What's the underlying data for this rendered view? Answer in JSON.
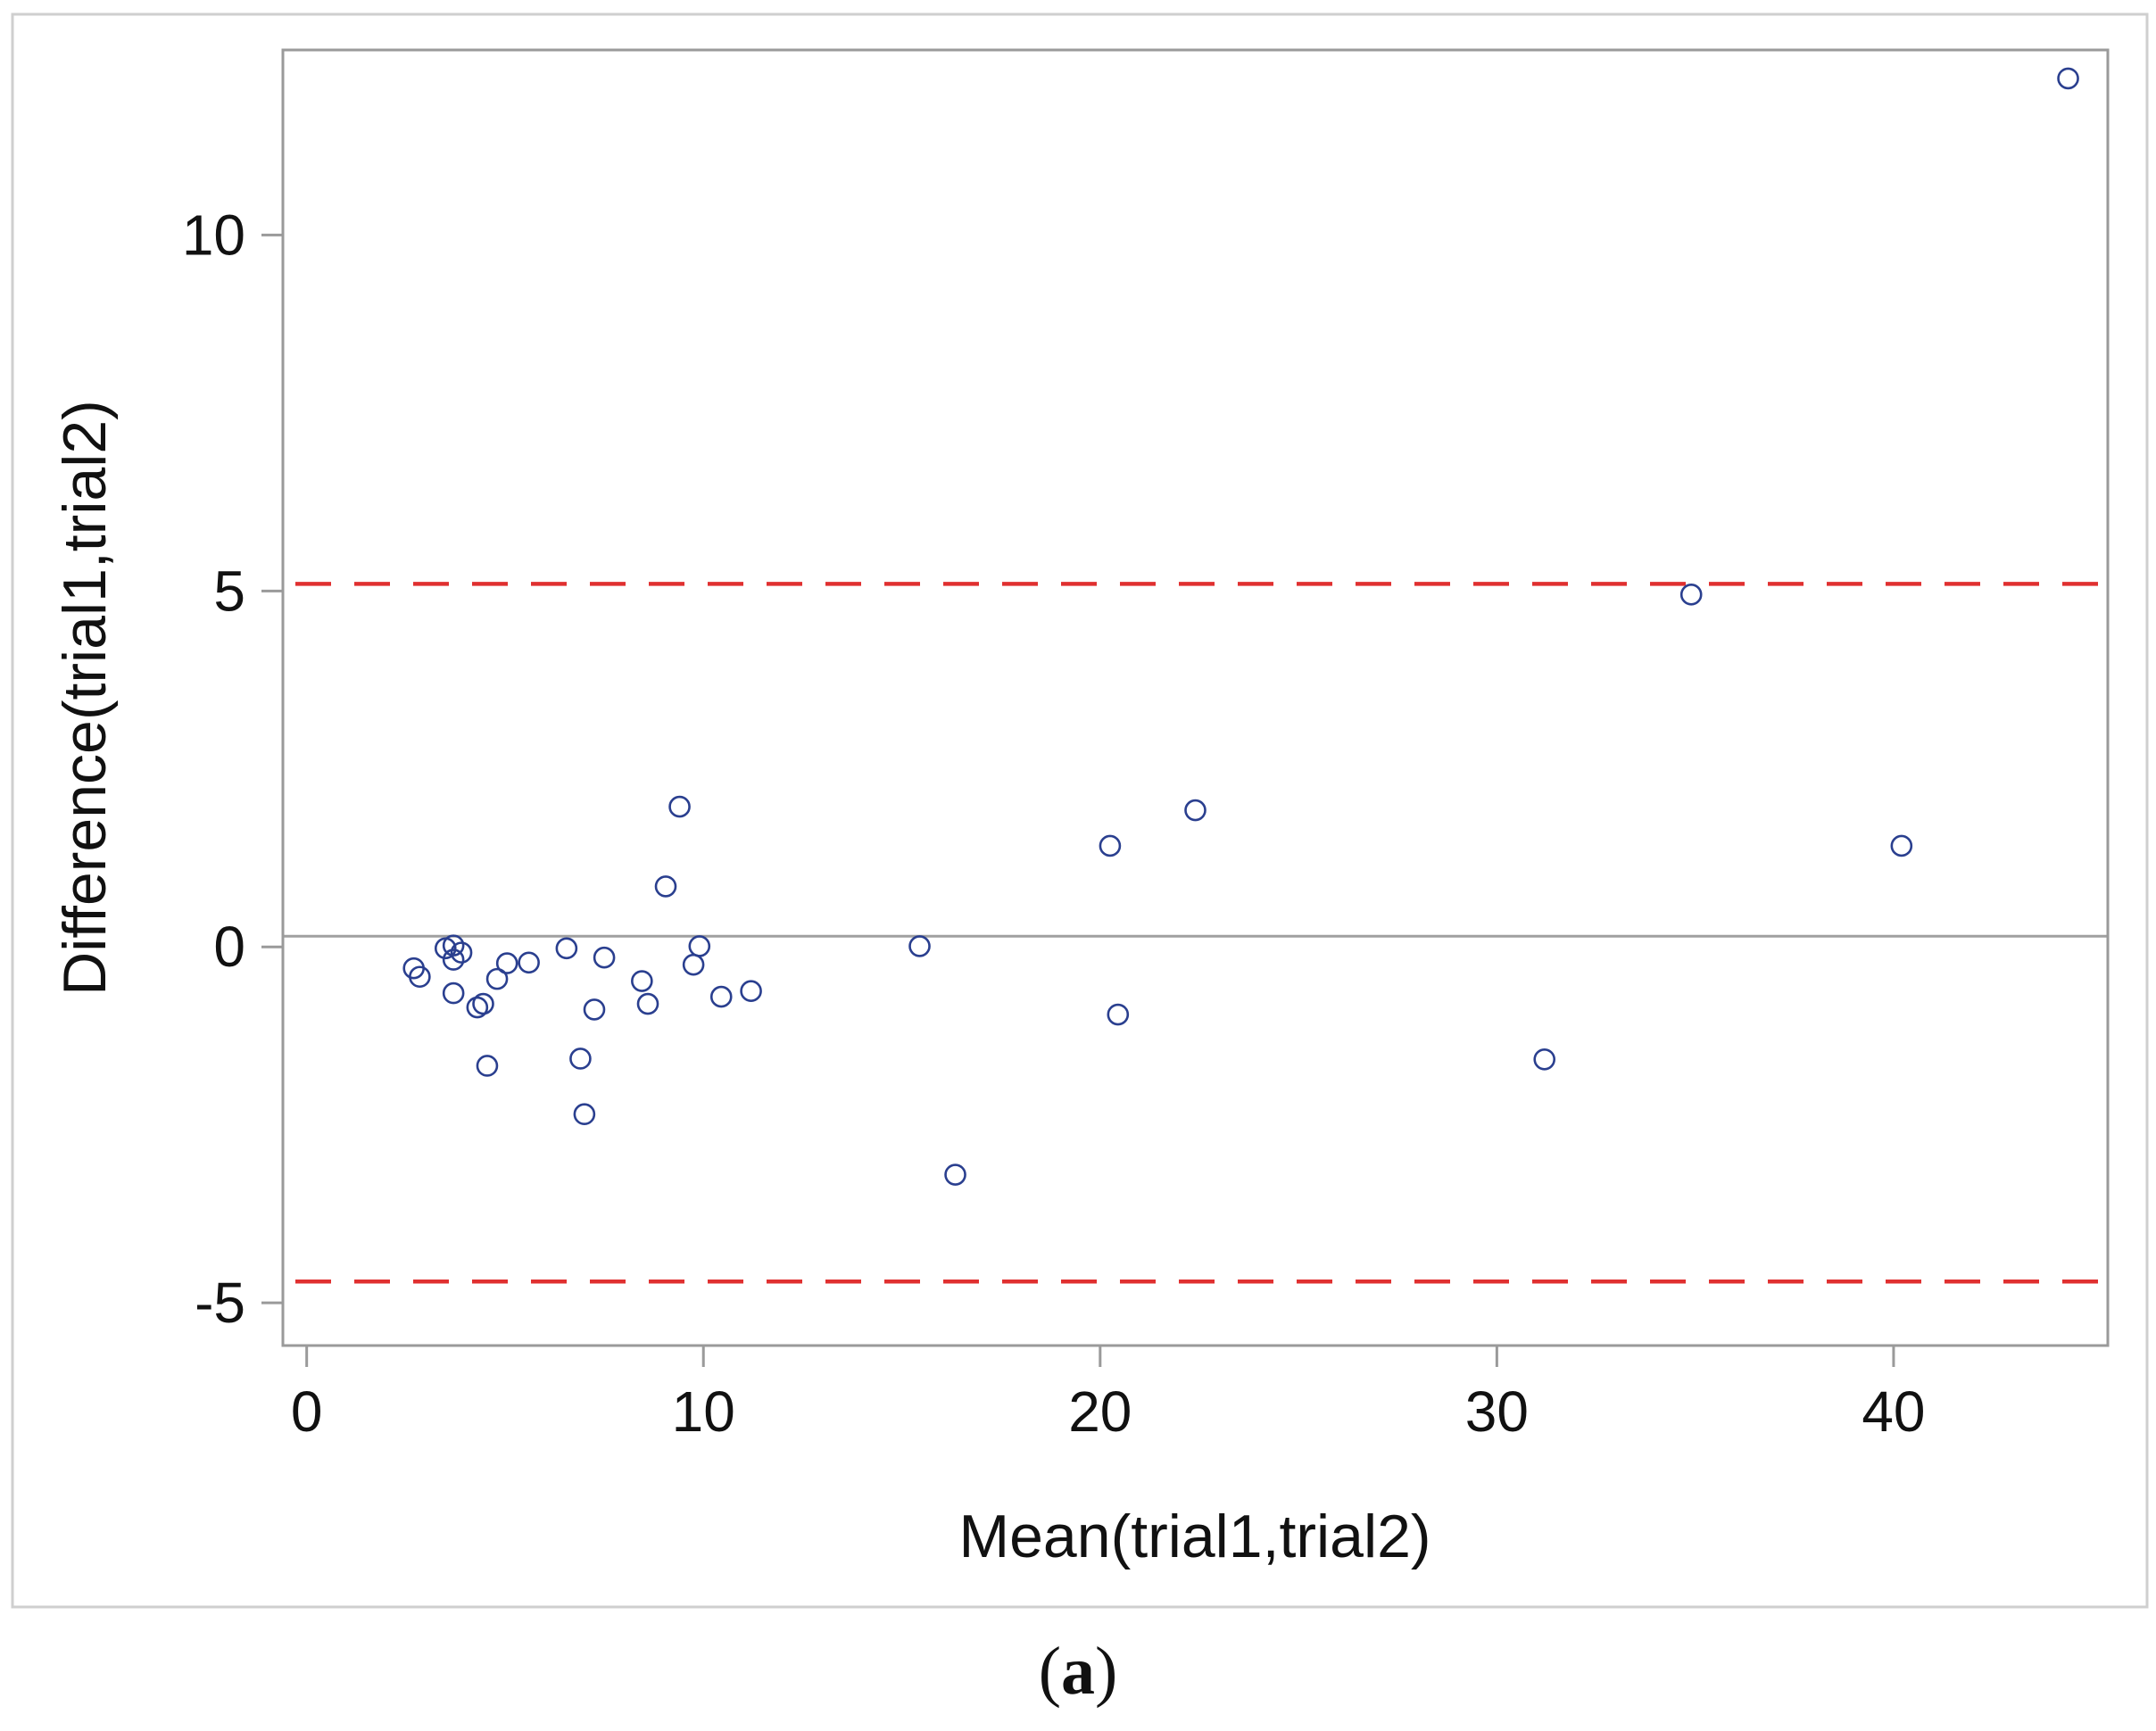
{
  "chart_data": {
    "type": "scatter",
    "title": "",
    "xlabel": "Mean(trial1,trial2)",
    "ylabel": "Difference(trial1,trial2)",
    "xlim": [
      -0.6,
      45.4
    ],
    "ylim": [
      -5.6,
      12.6
    ],
    "x_ticks": [
      0,
      10,
      20,
      30,
      40
    ],
    "x_tick_labels": [
      "0",
      "10",
      "20",
      "30",
      "40"
    ],
    "y_ticks": [
      -5,
      0,
      5,
      10
    ],
    "y_tick_labels": [
      "-5",
      "0",
      "5",
      "10"
    ],
    "grid": false,
    "reference_lines": [
      {
        "name": "mean-difference",
        "y": 0.15,
        "style": "solid",
        "color": "#a0a0a0"
      },
      {
        "name": "upper-limit-of-agreement",
        "y": 5.1,
        "style": "dashed",
        "color": "#e03030"
      },
      {
        "name": "lower-limit-of-agreement",
        "y": -4.7,
        "style": "dashed",
        "color": "#e03030"
      }
    ],
    "marker_color": "#2a3f8f",
    "series": [
      {
        "name": "observations",
        "points": [
          {
            "x": 2.7,
            "y": -0.3
          },
          {
            "x": 2.85,
            "y": -0.42
          },
          {
            "x": 3.5,
            "y": -0.02
          },
          {
            "x": 3.7,
            "y": 0.02
          },
          {
            "x": 3.7,
            "y": -0.18
          },
          {
            "x": 3.7,
            "y": -0.65
          },
          {
            "x": 3.9,
            "y": -0.08
          },
          {
            "x": 4.3,
            "y": -0.85
          },
          {
            "x": 4.45,
            "y": -0.8
          },
          {
            "x": 4.55,
            "y": -1.67
          },
          {
            "x": 4.8,
            "y": -0.45
          },
          {
            "x": 5.05,
            "y": -0.23
          },
          {
            "x": 5.6,
            "y": -0.22
          },
          {
            "x": 6.55,
            "y": -0.02
          },
          {
            "x": 6.9,
            "y": -1.57
          },
          {
            "x": 7.0,
            "y": -2.35
          },
          {
            "x": 7.25,
            "y": -0.88
          },
          {
            "x": 7.5,
            "y": -0.15
          },
          {
            "x": 8.45,
            "y": -0.48
          },
          {
            "x": 8.6,
            "y": -0.8
          },
          {
            "x": 9.05,
            "y": 0.85
          },
          {
            "x": 9.4,
            "y": 1.97
          },
          {
            "x": 9.75,
            "y": -0.25
          },
          {
            "x": 9.9,
            "y": 0.01
          },
          {
            "x": 10.45,
            "y": -0.7
          },
          {
            "x": 11.2,
            "y": -0.62
          },
          {
            "x": 15.45,
            "y": 0.01
          },
          {
            "x": 16.35,
            "y": -3.2
          },
          {
            "x": 20.25,
            "y": 1.42
          },
          {
            "x": 20.45,
            "y": -0.95
          },
          {
            "x": 22.4,
            "y": 1.92
          },
          {
            "x": 31.2,
            "y": -1.58
          },
          {
            "x": 34.9,
            "y": 4.95
          },
          {
            "x": 40.2,
            "y": 1.42
          },
          {
            "x": 44.4,
            "y": 12.2
          }
        ]
      }
    ]
  },
  "caption": {
    "prefix": "(",
    "label": "a",
    "suffix": ")"
  }
}
